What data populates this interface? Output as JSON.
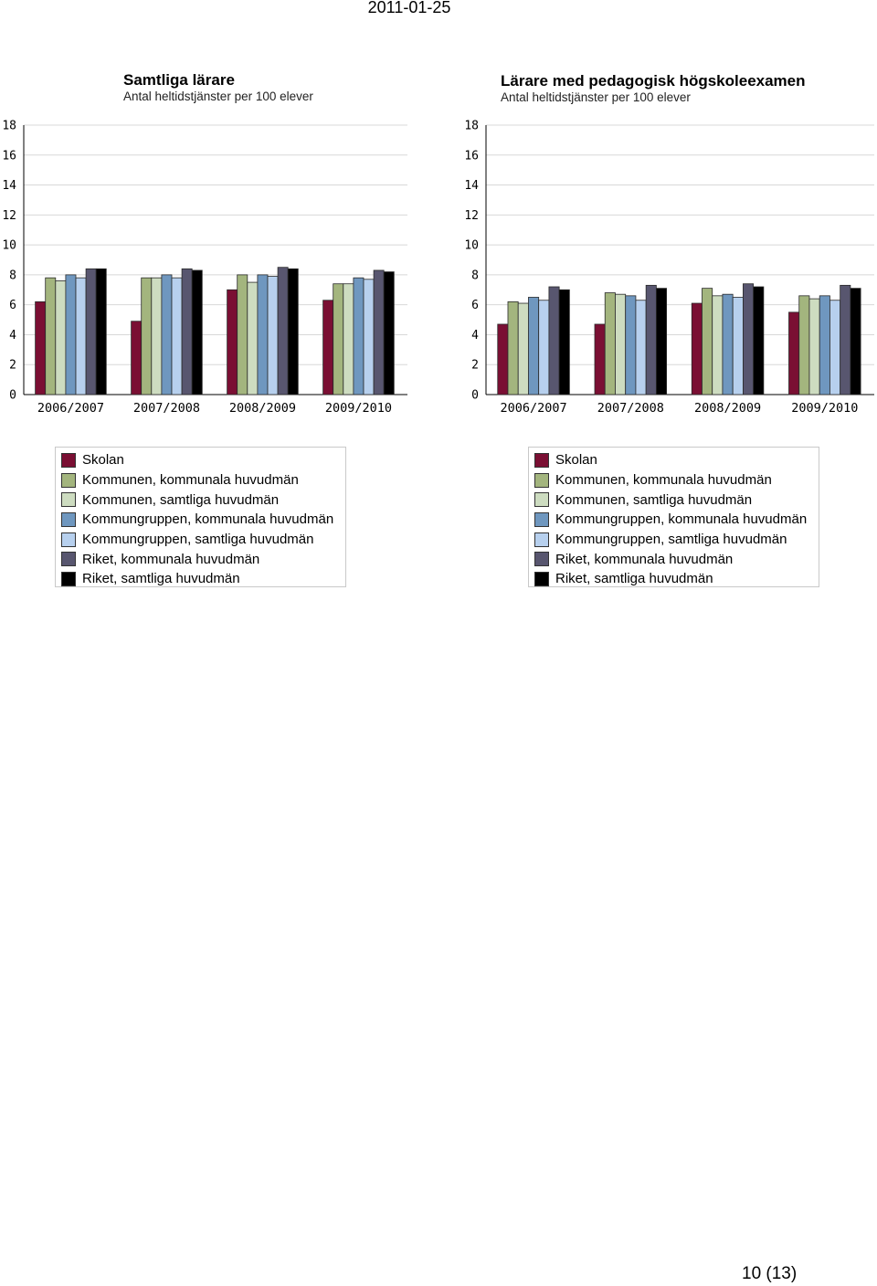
{
  "header": {
    "date": "2011-01-25"
  },
  "footer": {
    "page_number": "10 (13)"
  },
  "series_colors": [
    "#7a0f33",
    "#a3b57e",
    "#cddcc0",
    "#6f97bf",
    "#b7d0ee",
    "#58566f",
    "#000000"
  ],
  "chart_data": [
    {
      "type": "bar",
      "title": "Samtliga lärare",
      "subtitle": "Antal heltidstjänster per 100 elever",
      "xlabel": "",
      "ylabel": "",
      "ylim": [
        0,
        18
      ],
      "yticks": [
        0,
        2,
        4,
        6,
        8,
        10,
        12,
        14,
        16,
        18
      ],
      "grid": true,
      "legend_position": "bottom",
      "categories": [
        "2006/2007",
        "2007/2008",
        "2008/2009",
        "2009/2010"
      ],
      "series": [
        {
          "name": "Skolan",
          "values": [
            6.2,
            4.9,
            7.0,
            6.3
          ]
        },
        {
          "name": "Kommunen, kommunala huvudmän",
          "values": [
            7.8,
            7.8,
            8.0,
            7.4
          ]
        },
        {
          "name": "Kommunen, samtliga huvudmän",
          "values": [
            7.6,
            7.8,
            7.5,
            7.4
          ]
        },
        {
          "name": "Kommungruppen, kommunala huvudmän",
          "values": [
            8.0,
            8.0,
            8.0,
            7.8
          ]
        },
        {
          "name": "Kommungruppen, samtliga huvudmän",
          "values": [
            7.8,
            7.8,
            7.9,
            7.7
          ]
        },
        {
          "name": "Riket, kommunala huvudmän",
          "values": [
            8.4,
            8.4,
            8.5,
            8.3
          ]
        },
        {
          "name": "Riket, samtliga huvudmän",
          "values": [
            8.4,
            8.3,
            8.4,
            8.2
          ]
        }
      ]
    },
    {
      "type": "bar",
      "title": "Lärare med pedagogisk högskoleexamen",
      "subtitle": "Antal heltidstjänster per 100 elever",
      "xlabel": "",
      "ylabel": "",
      "ylim": [
        0,
        18
      ],
      "yticks": [
        0,
        2,
        4,
        6,
        8,
        10,
        12,
        14,
        16,
        18
      ],
      "grid": true,
      "legend_position": "bottom",
      "categories": [
        "2006/2007",
        "2007/2008",
        "2008/2009",
        "2009/2010"
      ],
      "series": [
        {
          "name": "Skolan",
          "values": [
            4.7,
            4.7,
            6.1,
            5.5
          ]
        },
        {
          "name": "Kommunen, kommunala huvudmän",
          "values": [
            6.2,
            6.8,
            7.1,
            6.6
          ]
        },
        {
          "name": "Kommunen, samtliga huvudmän",
          "values": [
            6.1,
            6.7,
            6.6,
            6.4
          ]
        },
        {
          "name": "Kommungruppen, kommunala huvudmän",
          "values": [
            6.5,
            6.6,
            6.7,
            6.6
          ]
        },
        {
          "name": "Kommungruppen, samtliga huvudmän",
          "values": [
            6.3,
            6.3,
            6.5,
            6.3
          ]
        },
        {
          "name": "Riket, kommunala huvudmän",
          "values": [
            7.2,
            7.3,
            7.4,
            7.3
          ]
        },
        {
          "name": "Riket, samtliga huvudmän",
          "values": [
            7.0,
            7.1,
            7.2,
            7.1
          ]
        }
      ]
    }
  ]
}
